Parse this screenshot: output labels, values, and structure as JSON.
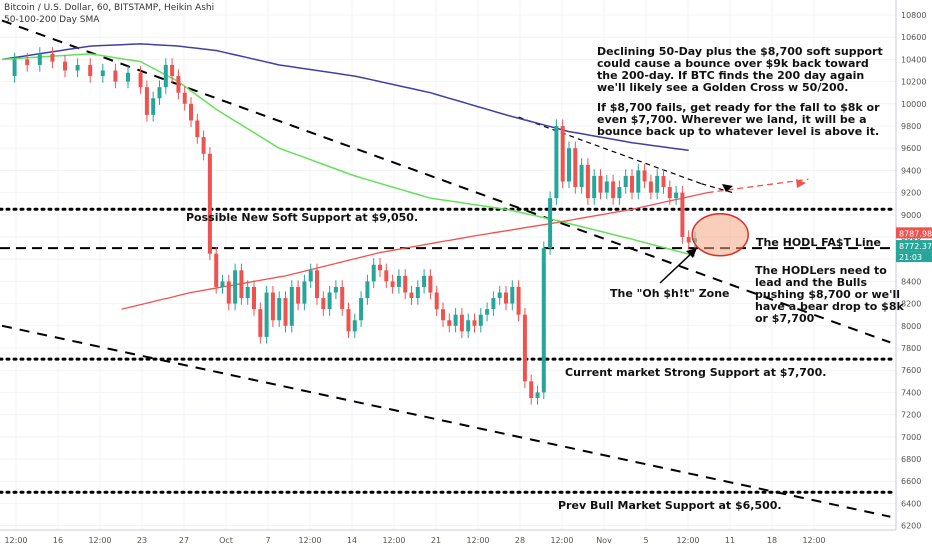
{
  "header": {
    "title": "Bitcoin / U.S. Dollar, 60, BITSTAMP, Heikin Ashi",
    "indicator": "50-100-200 Day SMA"
  },
  "annotations": {
    "note_top": [
      "Declining 50-Day plus the $8,700 soft support",
      "could cause a bounce over $9k back toward",
      "the 200-day. If BTC finds the 200 day again",
      "we'll likely see a Golden Cross w 50/200.",
      "",
      "If $8,700 fails, get ready for the fall to $8k or",
      "even $7,700. Wherever we land, it will be a",
      "bounce back up to whatever level is above it."
    ],
    "soft_support": "Possible New Soft Support at $9,050.",
    "hodl_line": "The HODL FA$T Line",
    "hodlers_note": [
      "The HODLers need to",
      "lead and the Bulls",
      "pushing $8,700 or we'll",
      "have a bear drop to $8k",
      "or $7,700"
    ],
    "oh_zone": "The \"Oh $h!t\" Zone",
    "strong_support": "Current market Strong Support at $7,700.",
    "bull_support": "Prev Bull Market Support at $6,500."
  },
  "chart_data": {
    "type": "candlestick",
    "title": "Bitcoin / U.S. Dollar, 60, BITSTAMP, Heikin Ashi",
    "y_axis": {
      "ticks": [
        6200,
        6400,
        6600,
        6800,
        7000,
        7200,
        7400,
        7600,
        7800,
        8000,
        8200,
        8400,
        8600,
        8800,
        9000,
        9200,
        9400,
        9600,
        9800,
        10000,
        10200,
        10400,
        10600,
        10800
      ],
      "range": [
        6150,
        10900
      ]
    },
    "x_axis": {
      "ticks": [
        "12:00",
        "16",
        "12:00",
        "23",
        "27",
        "Oct",
        "7",
        "12:00",
        "14",
        "12:00",
        "21",
        "12:00",
        "28",
        "12:00",
        "Nov",
        "5",
        "12:00",
        "11",
        "18",
        "12:00"
      ]
    },
    "price_labels": {
      "red": "8787.98",
      "green": "8772.37",
      "time": "21:03"
    },
    "price_path": [
      [
        0,
        10250
      ],
      [
        2,
        10400
      ],
      [
        4,
        10350
      ],
      [
        6,
        10450
      ],
      [
        8,
        10380
      ],
      [
        10,
        10300
      ],
      [
        12,
        10350
      ],
      [
        14,
        10250
      ],
      [
        16,
        10300
      ],
      [
        18,
        10200
      ],
      [
        20,
        10280
      ],
      [
        22,
        10150
      ],
      [
        23,
        9900
      ],
      [
        24,
        10050
      ],
      [
        25,
        10150
      ],
      [
        26,
        10350
      ],
      [
        27,
        10250
      ],
      [
        28,
        10100
      ],
      [
        29,
        10000
      ],
      [
        30,
        9850
      ],
      [
        31,
        9700
      ],
      [
        32,
        9550
      ],
      [
        33,
        8650
      ],
      [
        34,
        8350
      ],
      [
        35,
        8400
      ],
      [
        36,
        8200
      ],
      [
        37,
        8500
      ],
      [
        38,
        8250
      ],
      [
        39,
        8350
      ],
      [
        40,
        8150
      ],
      [
        41,
        7900
      ],
      [
        42,
        8300
      ],
      [
        43,
        8050
      ],
      [
        44,
        8250
      ],
      [
        45,
        8000
      ],
      [
        46,
        8350
      ],
      [
        47,
        8200
      ],
      [
        48,
        8400
      ],
      [
        49,
        8500
      ],
      [
        50,
        8250
      ],
      [
        51,
        8150
      ],
      [
        52,
        8300
      ],
      [
        53,
        8350
      ],
      [
        54,
        8150
      ],
      [
        55,
        7950
      ],
      [
        56,
        8050
      ],
      [
        57,
        8250
      ],
      [
        58,
        8400
      ],
      [
        59,
        8550
      ],
      [
        60,
        8500
      ],
      [
        61,
        8400
      ],
      [
        62,
        8350
      ],
      [
        63,
        8450
      ],
      [
        64,
        8300
      ],
      [
        65,
        8250
      ],
      [
        66,
        8350
      ],
      [
        67,
        8450
      ],
      [
        68,
        8300
      ],
      [
        69,
        8150
      ],
      [
        70,
        8050
      ],
      [
        71,
        8000
      ],
      [
        72,
        8100
      ],
      [
        73,
        7950
      ],
      [
        74,
        8050
      ],
      [
        75,
        8000
      ],
      [
        76,
        8100
      ],
      [
        77,
        8150
      ],
      [
        78,
        8250
      ],
      [
        79,
        8300
      ],
      [
        80,
        8200
      ],
      [
        81,
        8350
      ],
      [
        82,
        8100
      ],
      [
        83,
        7500
      ],
      [
        84,
        7350
      ],
      [
        85,
        7400
      ],
      [
        86,
        8700
      ],
      [
        87,
        9150
      ],
      [
        88,
        9800
      ],
      [
        89,
        9300
      ],
      [
        90,
        9600
      ],
      [
        91,
        9250
      ],
      [
        92,
        9450
      ],
      [
        93,
        9150
      ],
      [
        94,
        9350
      ],
      [
        95,
        9200
      ],
      [
        96,
        9300
      ],
      [
        97,
        9150
      ],
      [
        98,
        9250
      ],
      [
        99,
        9350
      ],
      [
        100,
        9200
      ],
      [
        101,
        9400
      ],
      [
        102,
        9300
      ],
      [
        103,
        9200
      ],
      [
        104,
        9350
      ],
      [
        105,
        9250
      ],
      [
        106,
        9150
      ],
      [
        107,
        9200
      ],
      [
        108,
        8800
      ],
      [
        109,
        8750
      ],
      [
        110,
        8790
      ]
    ],
    "sma_50": [
      [
        0,
        10400
      ],
      [
        14,
        10520
      ],
      [
        22,
        10540
      ],
      [
        28,
        10520
      ],
      [
        34,
        10480
      ],
      [
        44,
        10350
      ],
      [
        56,
        10250
      ],
      [
        68,
        10100
      ],
      [
        80,
        9900
      ],
      [
        90,
        9750
      ],
      [
        100,
        9650
      ],
      [
        109,
        9580
      ]
    ],
    "sma_100": [
      [
        0,
        10400
      ],
      [
        14,
        10450
      ],
      [
        22,
        10380
      ],
      [
        28,
        10200
      ],
      [
        34,
        9950
      ],
      [
        44,
        9600
      ],
      [
        56,
        9350
      ],
      [
        68,
        9150
      ],
      [
        80,
        9050
      ],
      [
        88,
        8950
      ],
      [
        100,
        8780
      ],
      [
        110,
        8630
      ]
    ],
    "sma_200": [
      [
        19,
        8150
      ],
      [
        30,
        8300
      ],
      [
        45,
        8450
      ],
      [
        60,
        8660
      ],
      [
        75,
        8810
      ],
      [
        87,
        8920
      ],
      [
        100,
        9050
      ],
      [
        112,
        9200
      ]
    ],
    "sma_200_projection": [
      [
        112,
        9200
      ],
      [
        128,
        9320
      ]
    ],
    "trendlines": [
      {
        "name": "Declining resistance",
        "points": [
          [
            0,
            10750
          ],
          [
            141,
            7850
          ]
        ]
      },
      {
        "name": "Lower channel",
        "points": [
          [
            0,
            8000
          ],
          [
            141,
            6280
          ]
        ]
      },
      {
        "name": "Short resistance",
        "points": [
          [
            82,
            9880
          ],
          [
            111,
            9280
          ]
        ]
      },
      {
        "name": "Short resistance projection",
        "points": [
          [
            111,
            9280
          ],
          [
            116,
            9200
          ]
        ]
      }
    ],
    "levels": [
      {
        "price": 9050,
        "label": "Possible New Soft Support at $9,050.",
        "style": "dotted"
      },
      {
        "price": 8700,
        "label": "The HODL FA$T Line",
        "style": "dashed"
      },
      {
        "price": 7700,
        "label": "Current market Strong Support at $7,700.",
        "style": "dotted"
      },
      {
        "price": 6500,
        "label": "Prev Bull Market Support at $6,500.",
        "style": "dotted"
      }
    ],
    "highlight_zone": {
      "center": [
        114,
        8820
      ],
      "label": "The \"Oh $h!t\" Zone"
    },
    "colors": {
      "up": "#26a69a",
      "down": "#ef5350",
      "sma_50": "#3f3fa6",
      "sma_100": "#66e05a",
      "sma_200": "#ef5350",
      "highlight": "#f4a582"
    }
  }
}
